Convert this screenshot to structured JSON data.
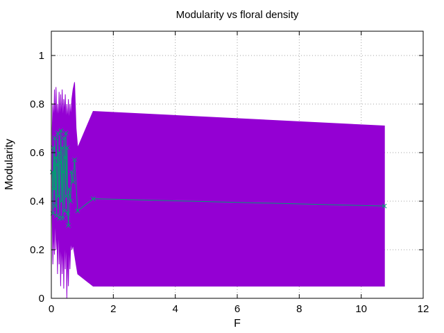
{
  "chart_data": {
    "type": "line",
    "title": "Modularity vs floral density",
    "xlabel": "F",
    "ylabel": "Modularity",
    "xlim": [
      0,
      12
    ],
    "ylim": [
      0,
      1.1
    ],
    "x_ticks": [
      "0",
      "2",
      "4",
      "6",
      "8",
      "10",
      "12"
    ],
    "y_ticks": [
      "0",
      "0.2",
      "0.4",
      "0.6",
      "0.8",
      "1"
    ],
    "grid": true,
    "colors": {
      "band": "#9400d3",
      "line": "#009e73"
    },
    "series": [
      {
        "type": "band",
        "points": [
          {
            "x": 0.03,
            "lo": 0.33,
            "hi": 0.7
          },
          {
            "x": 0.05,
            "lo": 0.14,
            "hi": 0.8
          },
          {
            "x": 0.08,
            "lo": 0.3,
            "hi": 0.72
          },
          {
            "x": 0.1,
            "lo": 0.18,
            "hi": 0.86
          },
          {
            "x": 0.12,
            "lo": 0.37,
            "hi": 0.69
          },
          {
            "x": 0.15,
            "lo": 0.2,
            "hi": 0.87
          },
          {
            "x": 0.18,
            "lo": 0.3,
            "hi": 0.7
          },
          {
            "x": 0.2,
            "lo": 0.1,
            "hi": 0.8
          },
          {
            "x": 0.23,
            "lo": 0.34,
            "hi": 0.72
          },
          {
            "x": 0.25,
            "lo": 0.14,
            "hi": 0.85
          },
          {
            "x": 0.28,
            "lo": 0.26,
            "hi": 0.7
          },
          {
            "x": 0.3,
            "lo": 0.05,
            "hi": 0.84
          },
          {
            "x": 0.33,
            "lo": 0.28,
            "hi": 0.72
          },
          {
            "x": 0.35,
            "lo": 0.1,
            "hi": 0.86
          },
          {
            "x": 0.38,
            "lo": 0.25,
            "hi": 0.7
          },
          {
            "x": 0.4,
            "lo": 0.04,
            "hi": 0.82
          },
          {
            "x": 0.43,
            "lo": 0.3,
            "hi": 0.75
          },
          {
            "x": 0.45,
            "lo": 0.12,
            "hi": 0.84
          },
          {
            "x": 0.48,
            "lo": 0.28,
            "hi": 0.7
          },
          {
            "x": 0.5,
            "lo": 0.0,
            "hi": 0.8
          },
          {
            "x": 0.53,
            "lo": 0.22,
            "hi": 0.72
          },
          {
            "x": 0.55,
            "lo": 0.05,
            "hi": 0.82
          },
          {
            "x": 0.58,
            "lo": 0.26,
            "hi": 0.7
          },
          {
            "x": 0.6,
            "lo": 0.12,
            "hi": 0.8
          },
          {
            "x": 0.63,
            "lo": 0.24,
            "hi": 0.74
          },
          {
            "x": 0.66,
            "lo": 0.2,
            "hi": 0.82
          },
          {
            "x": 0.7,
            "lo": 0.22,
            "hi": 0.86
          },
          {
            "x": 0.75,
            "lo": 0.18,
            "hi": 0.89
          },
          {
            "x": 0.8,
            "lo": 0.14,
            "hi": 0.7
          },
          {
            "x": 0.85,
            "lo": 0.1,
            "hi": 0.62
          },
          {
            "x": 1.35,
            "lo": 0.05,
            "hi": 0.77
          },
          {
            "x": 10.75,
            "lo": 0.05,
            "hi": 0.71
          }
        ]
      },
      {
        "type": "line",
        "points": [
          {
            "x": 0.03,
            "y": 0.52
          },
          {
            "x": 0.05,
            "y": 0.35
          },
          {
            "x": 0.07,
            "y": 0.62
          },
          {
            "x": 0.09,
            "y": 0.45
          },
          {
            "x": 0.11,
            "y": 0.66
          },
          {
            "x": 0.13,
            "y": 0.38
          },
          {
            "x": 0.15,
            "y": 0.58
          },
          {
            "x": 0.17,
            "y": 0.34
          },
          {
            "x": 0.19,
            "y": 0.55
          },
          {
            "x": 0.21,
            "y": 0.68
          },
          {
            "x": 0.23,
            "y": 0.42
          },
          {
            "x": 0.25,
            "y": 0.6
          },
          {
            "x": 0.27,
            "y": 0.33
          },
          {
            "x": 0.29,
            "y": 0.56
          },
          {
            "x": 0.31,
            "y": 0.69
          },
          {
            "x": 0.33,
            "y": 0.4
          },
          {
            "x": 0.35,
            "y": 0.62
          },
          {
            "x": 0.37,
            "y": 0.33
          },
          {
            "x": 0.39,
            "y": 0.52
          },
          {
            "x": 0.41,
            "y": 0.66
          },
          {
            "x": 0.43,
            "y": 0.36
          },
          {
            "x": 0.45,
            "y": 0.58
          },
          {
            "x": 0.47,
            "y": 0.68
          },
          {
            "x": 0.49,
            "y": 0.42
          },
          {
            "x": 0.51,
            "y": 0.62
          },
          {
            "x": 0.53,
            "y": 0.35
          },
          {
            "x": 0.55,
            "y": 0.3
          },
          {
            "x": 0.58,
            "y": 0.45
          },
          {
            "x": 0.62,
            "y": 0.4
          },
          {
            "x": 0.65,
            "y": 0.52
          },
          {
            "x": 0.7,
            "y": 0.48
          },
          {
            "x": 0.75,
            "y": 0.57
          },
          {
            "x": 0.85,
            "y": 0.36
          },
          {
            "x": 1.35,
            "y": 0.41
          },
          {
            "x": 10.75,
            "y": 0.38
          }
        ]
      }
    ]
  }
}
